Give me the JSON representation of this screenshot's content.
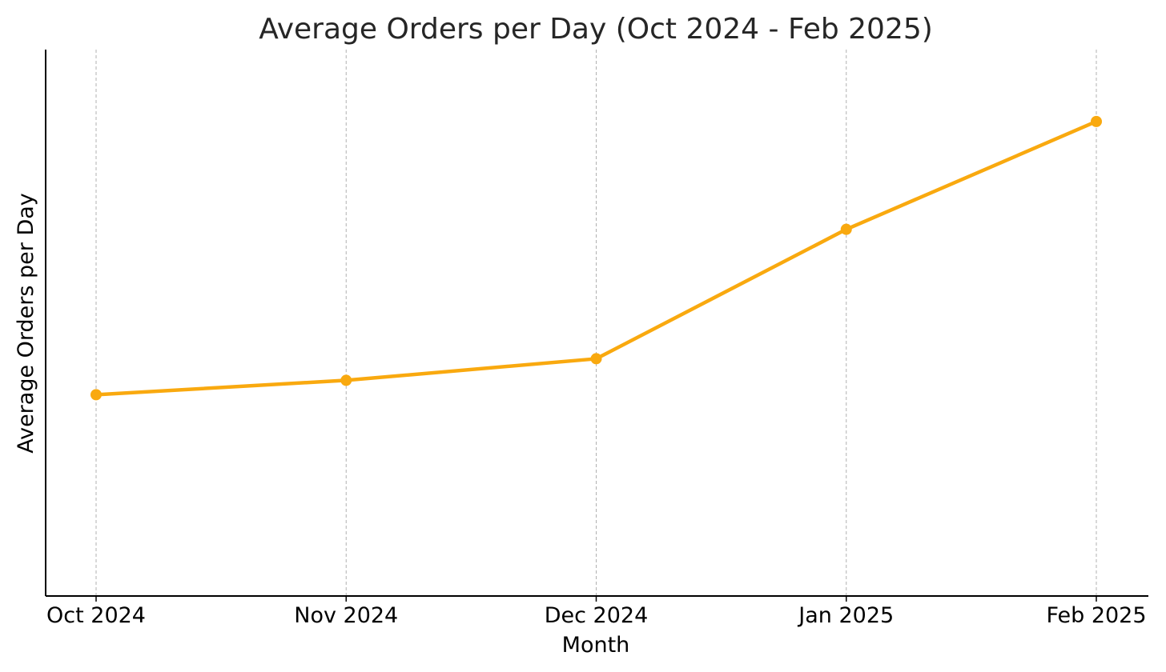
{
  "chart_data": {
    "type": "line",
    "title": "Average Orders per Day (Oct 2024 - Feb 2025)",
    "xlabel": "Month",
    "ylabel": "Average Orders per Day",
    "categories": [
      "Oct 2024",
      "Nov 2024",
      "Dec 2024",
      "Jan 2025",
      "Feb 2025"
    ],
    "series": [
      {
        "values": [
          50,
          52,
          55,
          73,
          88
        ]
      }
    ],
    "ylim": [
      22,
      98
    ],
    "y_ticks_shown": false,
    "grid": {
      "x": true,
      "y": false,
      "style": "dashed"
    },
    "colors": {
      "line": "#F9A90F",
      "grid": "#b0b0b0",
      "axis": "#000000"
    }
  }
}
